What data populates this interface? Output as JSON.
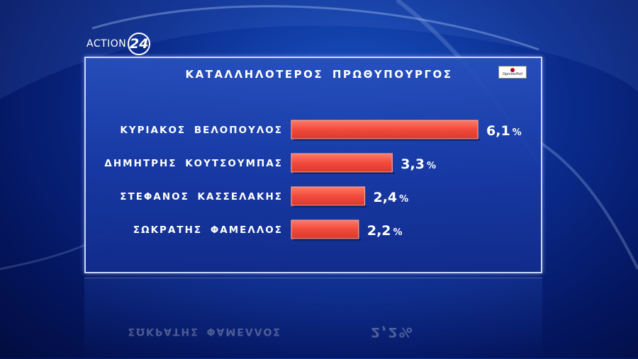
{
  "brand": {
    "word": "ACTION",
    "number": "24"
  },
  "badge": {
    "text": "OpinionPoll"
  },
  "colors": {
    "bar": "#f24a3c",
    "bar_edge": "#ffa090",
    "panel_border": "#c9d8ff"
  },
  "reflection": {
    "name": "ΣΩΚΡΑΤΗΣ ΦΑΜΕΛΛΟΣ",
    "value": "2,2%"
  },
  "chart_data": {
    "type": "bar",
    "orientation": "horizontal",
    "title": "ΚΑΤΑΛΛΗΛΟΤΕΡΟΣ ΠΡΩΘΥΠΟΥΡΓΟΣ",
    "categories": [
      "ΚΥΡΙΑΚΟΣ ΒΕΛΟΠΟΥΛΟΣ",
      "ΔΗΜΗΤΡΗΣ ΚΟΥΤΣΟΥΜΠΑΣ",
      "ΣΤΕΦΑΝΟΣ ΚΑΣΣΕΛΑΚΗΣ",
      "ΣΩΚΡΑΤΗΣ ΦΑΜΕΛΛΟΣ"
    ],
    "values": [
      6.1,
      3.3,
      2.4,
      2.2
    ],
    "value_labels": [
      "6,1",
      "3,3",
      "2,4",
      "2,2"
    ],
    "unit": "%",
    "xlim": [
      0,
      6.1
    ],
    "grid": false,
    "legend": "none"
  }
}
